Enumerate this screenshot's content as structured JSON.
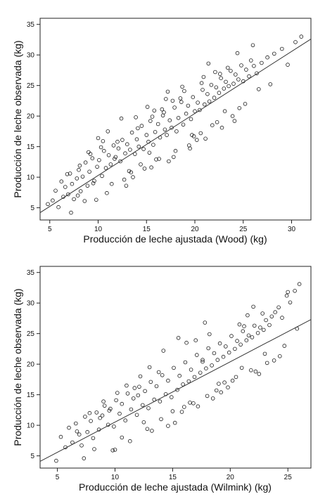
{
  "chart_data": [
    {
      "type": "scatter",
      "title": "",
      "xlabel": "Producción de leche ajustada (Wood) (kg)",
      "ylabel": "Producción de leche observada (kg)",
      "xlim": [
        4.0,
        32.0
      ],
      "ylim": [
        3.0,
        36.0
      ],
      "xticks": [
        5,
        10,
        15,
        20,
        25,
        30
      ],
      "yticks": [
        5,
        10,
        15,
        20,
        25,
        30,
        35
      ],
      "grid": false,
      "point_marker": "open-circle",
      "point_color": "#1a1a1a",
      "line_color": "#333333",
      "fit_line": {
        "x": [
          4.0,
          32.0
        ],
        "y": [
          4.2,
          32.6
        ]
      },
      "points": {
        "x": [
          4.8,
          5.3,
          5.6,
          5.9,
          6.2,
          6.4,
          6.6,
          6.9,
          7.1,
          7.3,
          7.5,
          7.8,
          8.0,
          8.2,
          8.4,
          8.7,
          8.9,
          9.1,
          9.4,
          9.6,
          9.9,
          10.1,
          10.4,
          10.6,
          10.8,
          11.1,
          11.3,
          11.6,
          11.8,
          12.1,
          12.3,
          12.5,
          12.8,
          13.0,
          13.3,
          13.5,
          13.8,
          14.0,
          14.2,
          14.5,
          14.7,
          15.0,
          15.2,
          15.4,
          15.7,
          15.9,
          16.2,
          16.4,
          16.7,
          16.9,
          17.1,
          17.4,
          17.6,
          17.9,
          18.1,
          18.3,
          18.6,
          18.8,
          19.1,
          19.3,
          19.6,
          19.8,
          20.0,
          20.3,
          20.5,
          20.8,
          21.0,
          21.3,
          21.5,
          21.7,
          22.0,
          22.2,
          22.5,
          22.7,
          23.0,
          23.2,
          23.5,
          23.7,
          24.0,
          24.2,
          24.5,
          24.8,
          25.0,
          25.3,
          25.6,
          25.8,
          26.1,
          26.4,
          26.9,
          27.5,
          28.2,
          29.0,
          29.6,
          30.4,
          31.0,
          7.2,
          8.6,
          9.2,
          10.3,
          11.4,
          12.4,
          13.2,
          14.4,
          15.1,
          16.3,
          17.0,
          18.0,
          18.9,
          19.7,
          20.6,
          21.4,
          22.3,
          23.1,
          24.1,
          6.8,
          8.1,
          9.8,
          10.9,
          12.0,
          13.6,
          15.5,
          16.8,
          17.8,
          19.4,
          20.9,
          22.8,
          24.6,
          26.0,
          7.9,
          9.0,
          10.5,
          12.7,
          14.1,
          15.8,
          17.3,
          18.5,
          20.2,
          21.8,
          23.4,
          25.2,
          26.6,
          27.8,
          11.0,
          13.9,
          16.0,
          18.7,
          21.1,
          22.6,
          12.9,
          15.3,
          17.7,
          19.9,
          24.4,
          9.5,
          14.8,
          10.0,
          16.6,
          20.7,
          23.9,
          13.4,
          11.7,
          17.2,
          19.5,
          22.1,
          15.6
        ],
        "y": [
          5.6,
          6.2,
          7.8,
          5.1,
          9.3,
          6.8,
          8.4,
          7.2,
          10.6,
          8.9,
          6.4,
          9.8,
          11.2,
          7.7,
          10.1,
          12.4,
          8.6,
          10.9,
          13.1,
          9.4,
          11.7,
          12.8,
          10.2,
          14.3,
          11.5,
          13.6,
          12.1,
          15.2,
          13.3,
          14.7,
          12.6,
          16.1,
          13.9,
          15.4,
          14.5,
          17.3,
          13.8,
          16.2,
          15.0,
          18.4,
          14.6,
          16.9,
          15.8,
          19.2,
          15.3,
          17.4,
          18.7,
          16.5,
          20.1,
          17.8,
          16.9,
          19.3,
          18.1,
          21.4,
          17.5,
          19.7,
          22.3,
          18.6,
          20.4,
          21.7,
          19.5,
          23.1,
          20.8,
          22.2,
          21.0,
          24.3,
          21.9,
          23.6,
          22.4,
          25.1,
          23.0,
          24.7,
          23.8,
          26.2,
          24.5,
          25.6,
          24.9,
          27.4,
          25.3,
          26.8,
          26.0,
          28.3,
          25.7,
          27.6,
          26.5,
          29.1,
          28.2,
          27.0,
          28.7,
          29.6,
          30.2,
          31.0,
          28.4,
          32.1,
          33.0,
          4.2,
          6.1,
          13.8,
          14.9,
          8.9,
          19.6,
          11.0,
          12.1,
          21.5,
          13.0,
          22.8,
          14.3,
          24.1,
          16.9,
          17.2,
          28.6,
          19.0,
          20.8,
          19.2,
          10.5,
          11.9,
          6.3,
          7.4,
          15.8,
          10.0,
          11.6,
          20.6,
          13.3,
          15.2,
          26.4,
          18.1,
          21.3,
          31.6,
          7.0,
          14.1,
          15.9,
          9.6,
          18.0,
          20.9,
          12.6,
          22.9,
          16.1,
          18.5,
          27.9,
          22.0,
          24.4,
          25.2,
          17.5,
          19.8,
          12.9,
          24.8,
          16.3,
          26.9,
          8.6,
          14.0,
          22.5,
          16.7,
          30.3,
          9.0,
          11.4,
          16.4,
          21.1,
          25.4,
          20.0,
          10.8,
          13.0,
          24.0,
          14.7,
          27.2,
          19.9
        ]
      }
    },
    {
      "type": "scatter",
      "title": "",
      "xlabel": "Producción de leche ajustada (Wilmink) (kg)",
      "ylabel": "Producción de leche observada (kg)",
      "xlim": [
        3.5,
        27.0
      ],
      "ylim": [
        3.0,
        36.0
      ],
      "xticks": [
        5,
        10,
        15,
        20,
        25
      ],
      "yticks": [
        5,
        10,
        15,
        20,
        25,
        30,
        35
      ],
      "grid": false,
      "point_marker": "open-circle",
      "point_color": "#1a1a1a",
      "line_color": "#333333",
      "fit_line": {
        "x": [
          3.5,
          27.0
        ],
        "y": [
          4.1,
          27.3
        ]
      },
      "points": {
        "x": [
          4.9,
          5.3,
          5.7,
          6.0,
          6.3,
          6.6,
          6.9,
          7.1,
          7.4,
          7.6,
          7.9,
          8.1,
          8.4,
          8.6,
          8.9,
          9.1,
          9.4,
          9.6,
          9.9,
          10.1,
          10.4,
          10.6,
          10.9,
          11.1,
          11.4,
          11.6,
          11.9,
          12.1,
          12.4,
          12.6,
          12.9,
          13.1,
          13.4,
          13.6,
          13.9,
          14.1,
          14.4,
          14.6,
          14.9,
          15.1,
          15.4,
          15.6,
          15.9,
          16.1,
          16.4,
          16.6,
          16.9,
          17.1,
          17.4,
          17.6,
          17.9,
          18.1,
          18.4,
          18.6,
          18.9,
          19.1,
          19.4,
          19.6,
          19.9,
          20.1,
          20.4,
          20.6,
          20.9,
          21.1,
          21.4,
          21.6,
          21.9,
          22.1,
          22.4,
          22.6,
          22.9,
          23.1,
          23.4,
          23.6,
          23.9,
          24.2,
          24.5,
          24.9,
          25.2,
          25.6,
          26.0,
          7.3,
          8.2,
          9.0,
          10.2,
          11.3,
          12.2,
          13.2,
          14.2,
          15.2,
          16.2,
          17.2,
          18.2,
          19.2,
          20.2,
          21.2,
          22.2,
          23.2,
          24.3,
          6.7,
          8.7,
          9.8,
          11.7,
          12.8,
          13.8,
          15.8,
          16.8,
          17.8,
          18.8,
          19.8,
          21.8,
          22.8,
          23.8,
          25.0,
          7.8,
          10.6,
          12.0,
          14.0,
          15.5,
          16.5,
          18.5,
          20.5,
          21.5,
          22.5,
          24.7,
          25.8,
          11.0,
          13.0,
          15.0,
          17.0,
          19.0,
          21.0,
          23.0,
          9.5,
          14.6,
          17.6,
          20.8,
          10.0,
          18.0,
          16.0,
          12.5,
          19.5,
          22.0
        ],
        "y": [
          4.2,
          8.1,
          6.4,
          9.6,
          7.2,
          10.3,
          8.5,
          6.7,
          11.4,
          8.9,
          10.7,
          7.9,
          12.1,
          9.3,
          11.6,
          13.2,
          10.1,
          12.7,
          9.8,
          14.1,
          11.9,
          13.5,
          10.8,
          15.2,
          12.6,
          14.4,
          11.7,
          16.3,
          13.3,
          15.6,
          12.8,
          17.1,
          14.2,
          16.4,
          13.9,
          18.2,
          15.1,
          17.3,
          14.6,
          19.4,
          15.8,
          18.1,
          16.7,
          20.3,
          17.2,
          19.1,
          17.9,
          21.5,
          18.6,
          20.4,
          19.3,
          22.6,
          19.8,
          21.8,
          20.7,
          23.4,
          21.2,
          22.9,
          21.9,
          24.6,
          22.5,
          23.8,
          23.2,
          25.4,
          23.9,
          24.7,
          24.4,
          26.3,
          25.1,
          26.0,
          25.6,
          27.2,
          26.4,
          27.8,
          28.5,
          29.3,
          27.6,
          31.2,
          30.1,
          32.0,
          33.1,
          4.6,
          6.1,
          13.9,
          15.3,
          7.4,
          18.0,
          9.1,
          22.2,
          10.4,
          23.5,
          13.1,
          24.9,
          15.4,
          17.3,
          26.2,
          18.8,
          20.2,
          21.3,
          9.0,
          11.2,
          5.9,
          16.1,
          9.4,
          18.7,
          12.2,
          13.6,
          26.8,
          15.7,
          16.2,
          19.0,
          28.3,
          20.6,
          31.8,
          12.0,
          8.0,
          14.9,
          11.0,
          24.3,
          13.7,
          14.4,
          17.9,
          28.0,
          18.4,
          23.0,
          25.8,
          16.5,
          19.5,
          12.3,
          23.9,
          16.8,
          19.4,
          21.7,
          12.4,
          9.9,
          20.7,
          26.5,
          6.0,
          14.8,
          13.0,
          10.5,
          17.0,
          29.4
        ]
      }
    }
  ]
}
